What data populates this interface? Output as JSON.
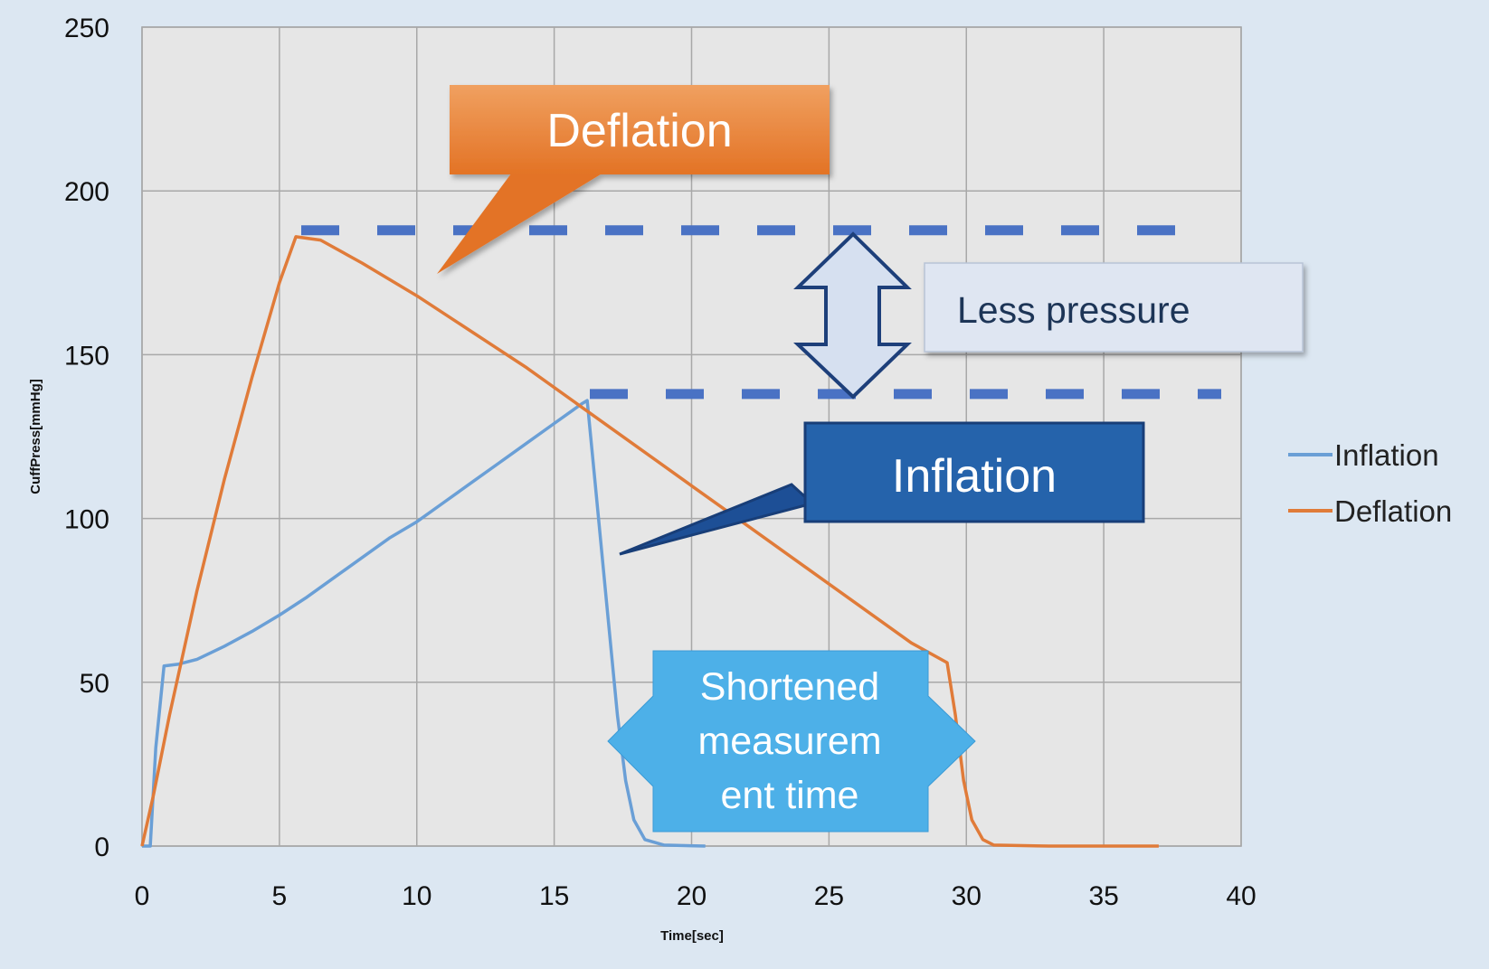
{
  "chart_data": {
    "type": "line",
    "title": "",
    "xlabel": "Time[sec]",
    "ylabel": "CuffPress[mmHg]",
    "xlim": [
      0,
      40
    ],
    "ylim": [
      0,
      250
    ],
    "x_ticks": [
      "0",
      "5",
      "10",
      "15",
      "20",
      "25",
      "30",
      "35",
      "40"
    ],
    "y_ticks": [
      "0",
      "50",
      "100",
      "150",
      "200",
      "250"
    ],
    "grid": true,
    "legend_position": "right",
    "series": [
      {
        "name": "Inflation",
        "color": "#6a9fd6",
        "points": [
          [
            0,
            0
          ],
          [
            0.3,
            0
          ],
          [
            0.5,
            30
          ],
          [
            0.8,
            55
          ],
          [
            1.3,
            55.5
          ],
          [
            2,
            57
          ],
          [
            3,
            61
          ],
          [
            4,
            65.5
          ],
          [
            5,
            70.5
          ],
          [
            6,
            76
          ],
          [
            7,
            82
          ],
          [
            8,
            88
          ],
          [
            9,
            94
          ],
          [
            10,
            99
          ],
          [
            11,
            105
          ],
          [
            12,
            111
          ],
          [
            13,
            117
          ],
          [
            14,
            123
          ],
          [
            15,
            129
          ],
          [
            16,
            135
          ],
          [
            16.2,
            136
          ],
          [
            16.5,
            110
          ],
          [
            16.9,
            75
          ],
          [
            17.3,
            40
          ],
          [
            17.6,
            20
          ],
          [
            17.9,
            8
          ],
          [
            18.3,
            2
          ],
          [
            19,
            0.3
          ],
          [
            20.5,
            0
          ]
        ]
      },
      {
        "name": "Deflation",
        "color": "#e07b39",
        "points": [
          [
            0,
            0
          ],
          [
            0.4,
            15
          ],
          [
            1,
            40
          ],
          [
            2,
            78
          ],
          [
            3,
            112
          ],
          [
            4,
            143
          ],
          [
            5,
            172
          ],
          [
            5.6,
            186
          ],
          [
            6.5,
            185
          ],
          [
            8,
            178
          ],
          [
            10,
            168
          ],
          [
            12,
            157
          ],
          [
            14,
            146
          ],
          [
            16,
            134
          ],
          [
            18,
            122
          ],
          [
            20,
            110
          ],
          [
            22,
            98
          ],
          [
            24,
            86
          ],
          [
            26,
            74
          ],
          [
            28,
            62
          ],
          [
            29.3,
            56
          ],
          [
            29.6,
            40
          ],
          [
            29.9,
            20
          ],
          [
            30.2,
            8
          ],
          [
            30.6,
            2
          ],
          [
            31,
            0.3
          ],
          [
            33,
            0
          ],
          [
            37,
            0
          ]
        ]
      }
    ],
    "annotations": {
      "deflation_callout": "Deflation",
      "inflation_callout": "Inflation",
      "pressure_label": "Less pressure",
      "time_label_lines": [
        "Shortened",
        "measurem",
        "ent time"
      ],
      "deflation_peak_line_y": 188,
      "inflation_peak_line_y": 138,
      "callout_colors": {
        "deflation": "#e8803a",
        "inflation": "#2563ab",
        "time": "#4db0e8",
        "pressure_box": "#dfe6f2",
        "dashes": "#4a72c4"
      }
    }
  }
}
